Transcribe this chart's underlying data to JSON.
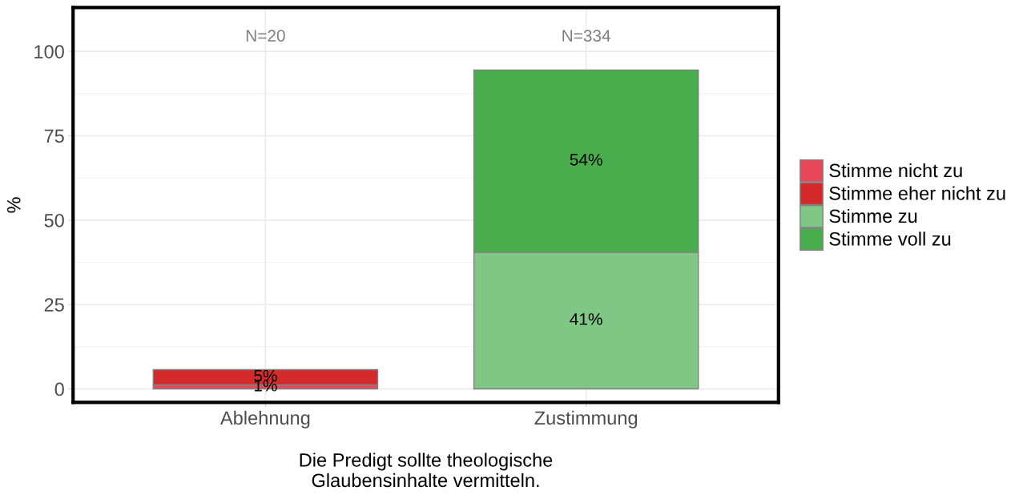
{
  "chart_data": {
    "type": "bar",
    "stacked": true,
    "xlabel": "Die Predigt sollte theologische\nGlaubensinhalte vermitteln.",
    "ylabel": "%",
    "categories": [
      "Ablehnung",
      "Zustimmung"
    ],
    "series": [
      {
        "name": "Stimme nicht zu",
        "color": "#e8475a",
        "values": [
          1.2,
          null
        ],
        "value_labels": [
          "1%",
          null
        ]
      },
      {
        "name": "Stimme eher nicht zu",
        "color": "#d42a2c",
        "values": [
          4.5,
          null
        ],
        "value_labels": [
          "5%",
          null
        ]
      },
      {
        "name": "Stimme zu",
        "color": "#80c684",
        "values": [
          null,
          40.5
        ],
        "value_labels": [
          null,
          "41%"
        ]
      },
      {
        "name": "Stimme voll zu",
        "color": "#4aad4d",
        "values": [
          null,
          54
        ],
        "value_labels": [
          null,
          "54%"
        ]
      }
    ],
    "annotations": [
      "N=20",
      "N=334"
    ],
    "ylim": [
      -4,
      113
    ],
    "yticks": [
      0,
      25,
      50,
      75,
      100
    ],
    "grid": true,
    "legend": "right"
  }
}
